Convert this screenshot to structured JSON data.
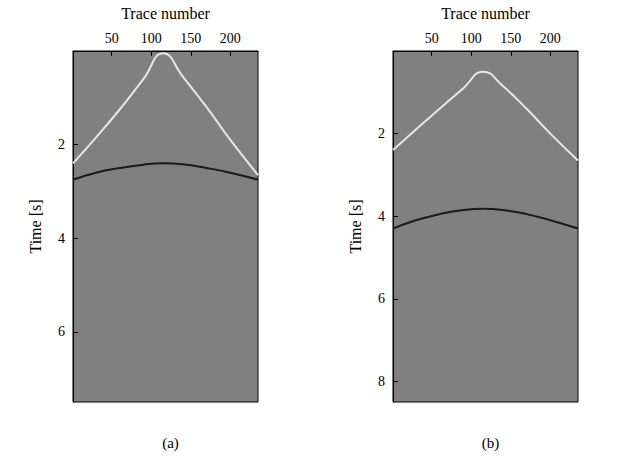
{
  "chart_data": [
    {
      "type": "line",
      "title": "(a)",
      "x_label": "Trace number",
      "y_label": "Time [s]",
      "xlim": [
        1,
        235
      ],
      "xticks": [
        50,
        100,
        150,
        200
      ],
      "ylim": [
        0,
        7.5
      ],
      "yticks": [
        2,
        4,
        6
      ],
      "grid": false,
      "x": [
        1,
        30,
        60,
        90,
        115,
        140,
        170,
        200,
        235
      ],
      "series": [
        {
          "color": "#e6e6e6",
          "line_style": "solid",
          "values": [
            2.4,
            1.85,
            1.25,
            0.6,
            0.05,
            0.55,
            1.2,
            1.9,
            2.65
          ]
        },
        {
          "color": "#1a1a1a",
          "line_style": "solid",
          "values": [
            2.75,
            2.6,
            2.5,
            2.43,
            2.4,
            2.42,
            2.5,
            2.6,
            2.75
          ]
        }
      ]
    },
    {
      "type": "line",
      "title": "(b)",
      "x_label": "Trace number",
      "y_label": "Time [s]",
      "xlim": [
        1,
        235
      ],
      "xticks": [
        50,
        100,
        150,
        200
      ],
      "ylim": [
        0,
        8.5
      ],
      "yticks": [
        2,
        4,
        6,
        8
      ],
      "grid": false,
      "x": [
        1,
        30,
        60,
        90,
        115,
        140,
        170,
        200,
        235
      ],
      "series": [
        {
          "color": "#e6e6e6",
          "line_style": "solid",
          "values": [
            2.4,
            1.9,
            1.4,
            0.9,
            0.5,
            0.85,
            1.4,
            2.0,
            2.65
          ]
        },
        {
          "color": "#1a1a1a",
          "line_style": "solid",
          "values": [
            4.3,
            4.1,
            3.95,
            3.85,
            3.82,
            3.85,
            3.95,
            4.1,
            4.3
          ]
        }
      ]
    }
  ]
}
